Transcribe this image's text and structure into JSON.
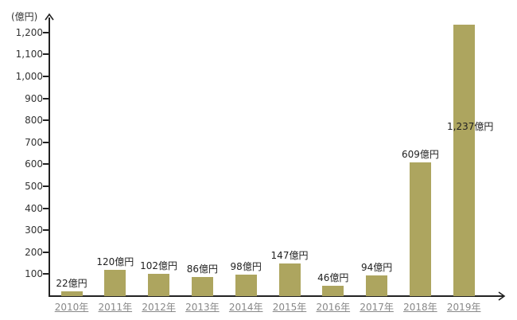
{
  "chart_data": {
    "type": "bar",
    "title": "",
    "xlabel": "",
    "ylabel": "(億円)",
    "ylim": [
      0,
      1250
    ],
    "grid": false,
    "legend": null,
    "categories": [
      "2010年",
      "2011年",
      "2012年",
      "2013年",
      "2014年",
      "2015年",
      "2016年",
      "2017年",
      "2018年",
      "2019年"
    ],
    "values": [
      22,
      120,
      102,
      86,
      98,
      147,
      46,
      94,
      609,
      1237
    ],
    "value_labels": [
      "22億円",
      "120億円",
      "102億円",
      "86億円",
      "98億円",
      "147億円",
      "46億円",
      "94億円",
      "609億円",
      "1,237億円"
    ],
    "yticks": [
      100,
      200,
      300,
      400,
      500,
      600,
      700,
      800,
      900,
      1000,
      1100,
      1200
    ],
    "ytick_labels": [
      "100",
      "200",
      "300",
      "400",
      "500",
      "600",
      "700",
      "800",
      "900",
      "1,000",
      "1,100",
      "1,200"
    ],
    "bar_color": "#ada55f"
  }
}
